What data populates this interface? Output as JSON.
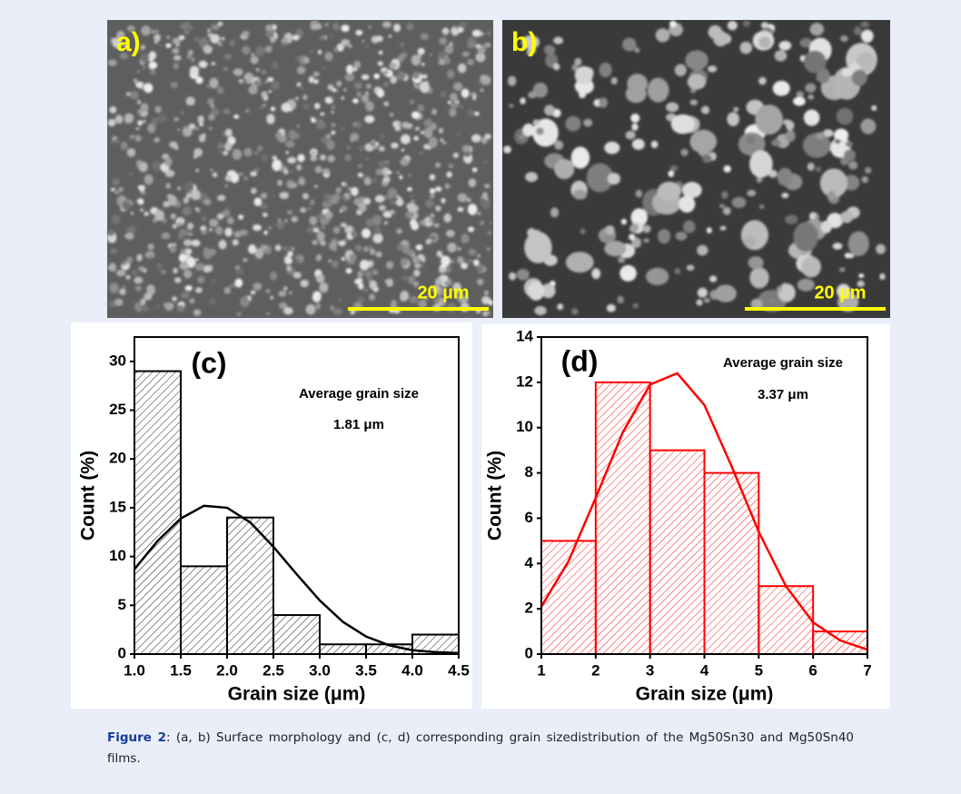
{
  "panels": [
    {
      "label": "a)",
      "scale_bar": "20 µm"
    },
    {
      "label": "b)",
      "scale_bar": "20 µm"
    }
  ],
  "chart_data": [
    {
      "type": "histogram",
      "title": "(c)",
      "annotation": "Average grain size",
      "annotation_value": "1.81 μm",
      "xlabel": "Grain size (μm)",
      "ylabel": "Count (%)",
      "color": "#000000",
      "bins": [
        1.0,
        1.5,
        2.0,
        2.5,
        3.0,
        3.5,
        4.0,
        4.5
      ],
      "values": [
        29,
        9,
        14,
        4,
        1,
        1,
        2
      ],
      "xlim": [
        1.0,
        4.5
      ],
      "ylim": [
        0,
        32.5
      ],
      "xticks": [
        {
          "value": 1,
          "label": "1.0"
        },
        {
          "value": 1.5,
          "label": "1.5"
        },
        {
          "value": 2,
          "label": "2.0"
        },
        {
          "value": 2.5,
          "label": "2.5"
        },
        {
          "value": 3,
          "label": "3.0"
        },
        {
          "value": 3.5,
          "label": "3.5"
        },
        {
          "value": 4,
          "label": "4.0"
        },
        {
          "value": 4.5,
          "label": "4.5"
        }
      ],
      "yticks": [
        0,
        5,
        10,
        15,
        20,
        25,
        30
      ],
      "fit": {
        "x": [
          1.0,
          1.25,
          1.5,
          1.75,
          2.0,
          2.25,
          2.5,
          2.75,
          3.0,
          3.25,
          3.5,
          3.75,
          4.0,
          4.25,
          4.5
        ],
        "values": [
          8.7,
          11.6,
          13.9,
          15.2,
          15.0,
          13.5,
          11.0,
          8.2,
          5.5,
          3.3,
          1.8,
          0.9,
          0.4,
          0.2,
          0.1
        ]
      }
    },
    {
      "type": "histogram",
      "title": "(d)",
      "annotation": "Average grain size",
      "annotation_value": "3.37 μm",
      "xlabel": "Grain size (μm)",
      "ylabel": "Count (%)",
      "color": "#ff0000",
      "bins": [
        1,
        2,
        3,
        4,
        5,
        6,
        7
      ],
      "values": [
        5,
        12,
        9,
        8,
        3,
        1
      ],
      "xlim": [
        1,
        7
      ],
      "ylim": [
        0,
        14
      ],
      "xticks": [
        1,
        2,
        3,
        4,
        5,
        6,
        7
      ],
      "yticks": [
        0,
        2,
        4,
        6,
        8,
        10,
        12,
        14
      ],
      "fit": {
        "x": [
          1,
          1.5,
          2,
          2.5,
          3,
          3.5,
          4,
          4.5,
          5,
          5.5,
          6,
          6.5,
          7
        ],
        "values": [
          2.1,
          4.1,
          6.9,
          9.8,
          11.9,
          12.4,
          11.0,
          8.3,
          5.4,
          3.0,
          1.4,
          0.6,
          0.2
        ]
      }
    }
  ],
  "caption": {
    "label": "Figure 2",
    "text": ": (a, b) Surface morphology and (c, d) corresponding grain sizedistribution of the Mg50Sn30 and Mg50Sn40 films."
  }
}
